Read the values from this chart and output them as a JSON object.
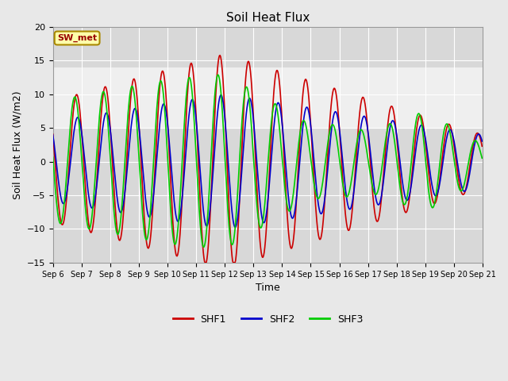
{
  "title": "Soil Heat Flux",
  "xlabel": "Time",
  "ylabel": "Soil Heat Flux (W/m2)",
  "ylim": [
    -15,
    20
  ],
  "xlim_days": [
    6,
    21
  ],
  "shaded_band_lo": 5,
  "shaded_band_hi": 14,
  "legend_label": "SW_met",
  "series_labels": [
    "SHF1",
    "SHF2",
    "SHF3"
  ],
  "series_colors": [
    "#cc0000",
    "#0000cc",
    "#00cc00"
  ],
  "bg_color": "#e8e8e8",
  "axes_bg": "#d8d8d8",
  "shaded_color": "#ffffff",
  "tick_labels": [
    "Sep 6",
    "Sep 7",
    "Sep 8",
    "Sep 9",
    "Sep 10",
    "Sep 11",
    "Sep 12",
    "Sep 13",
    "Sep 14",
    "Sep 15",
    "Sep 16",
    "Sep 17",
    "Sep 18",
    "Sep 19",
    "Sep 20",
    "Sep 21"
  ],
  "grid_color": "#ffffff",
  "line_width": 1.2,
  "annotation_box_color": "#ffffaa",
  "annotation_text_color": "#990000",
  "annotation_border_color": "#aa8800",
  "figsize": [
    6.4,
    4.8
  ],
  "dpi": 100
}
